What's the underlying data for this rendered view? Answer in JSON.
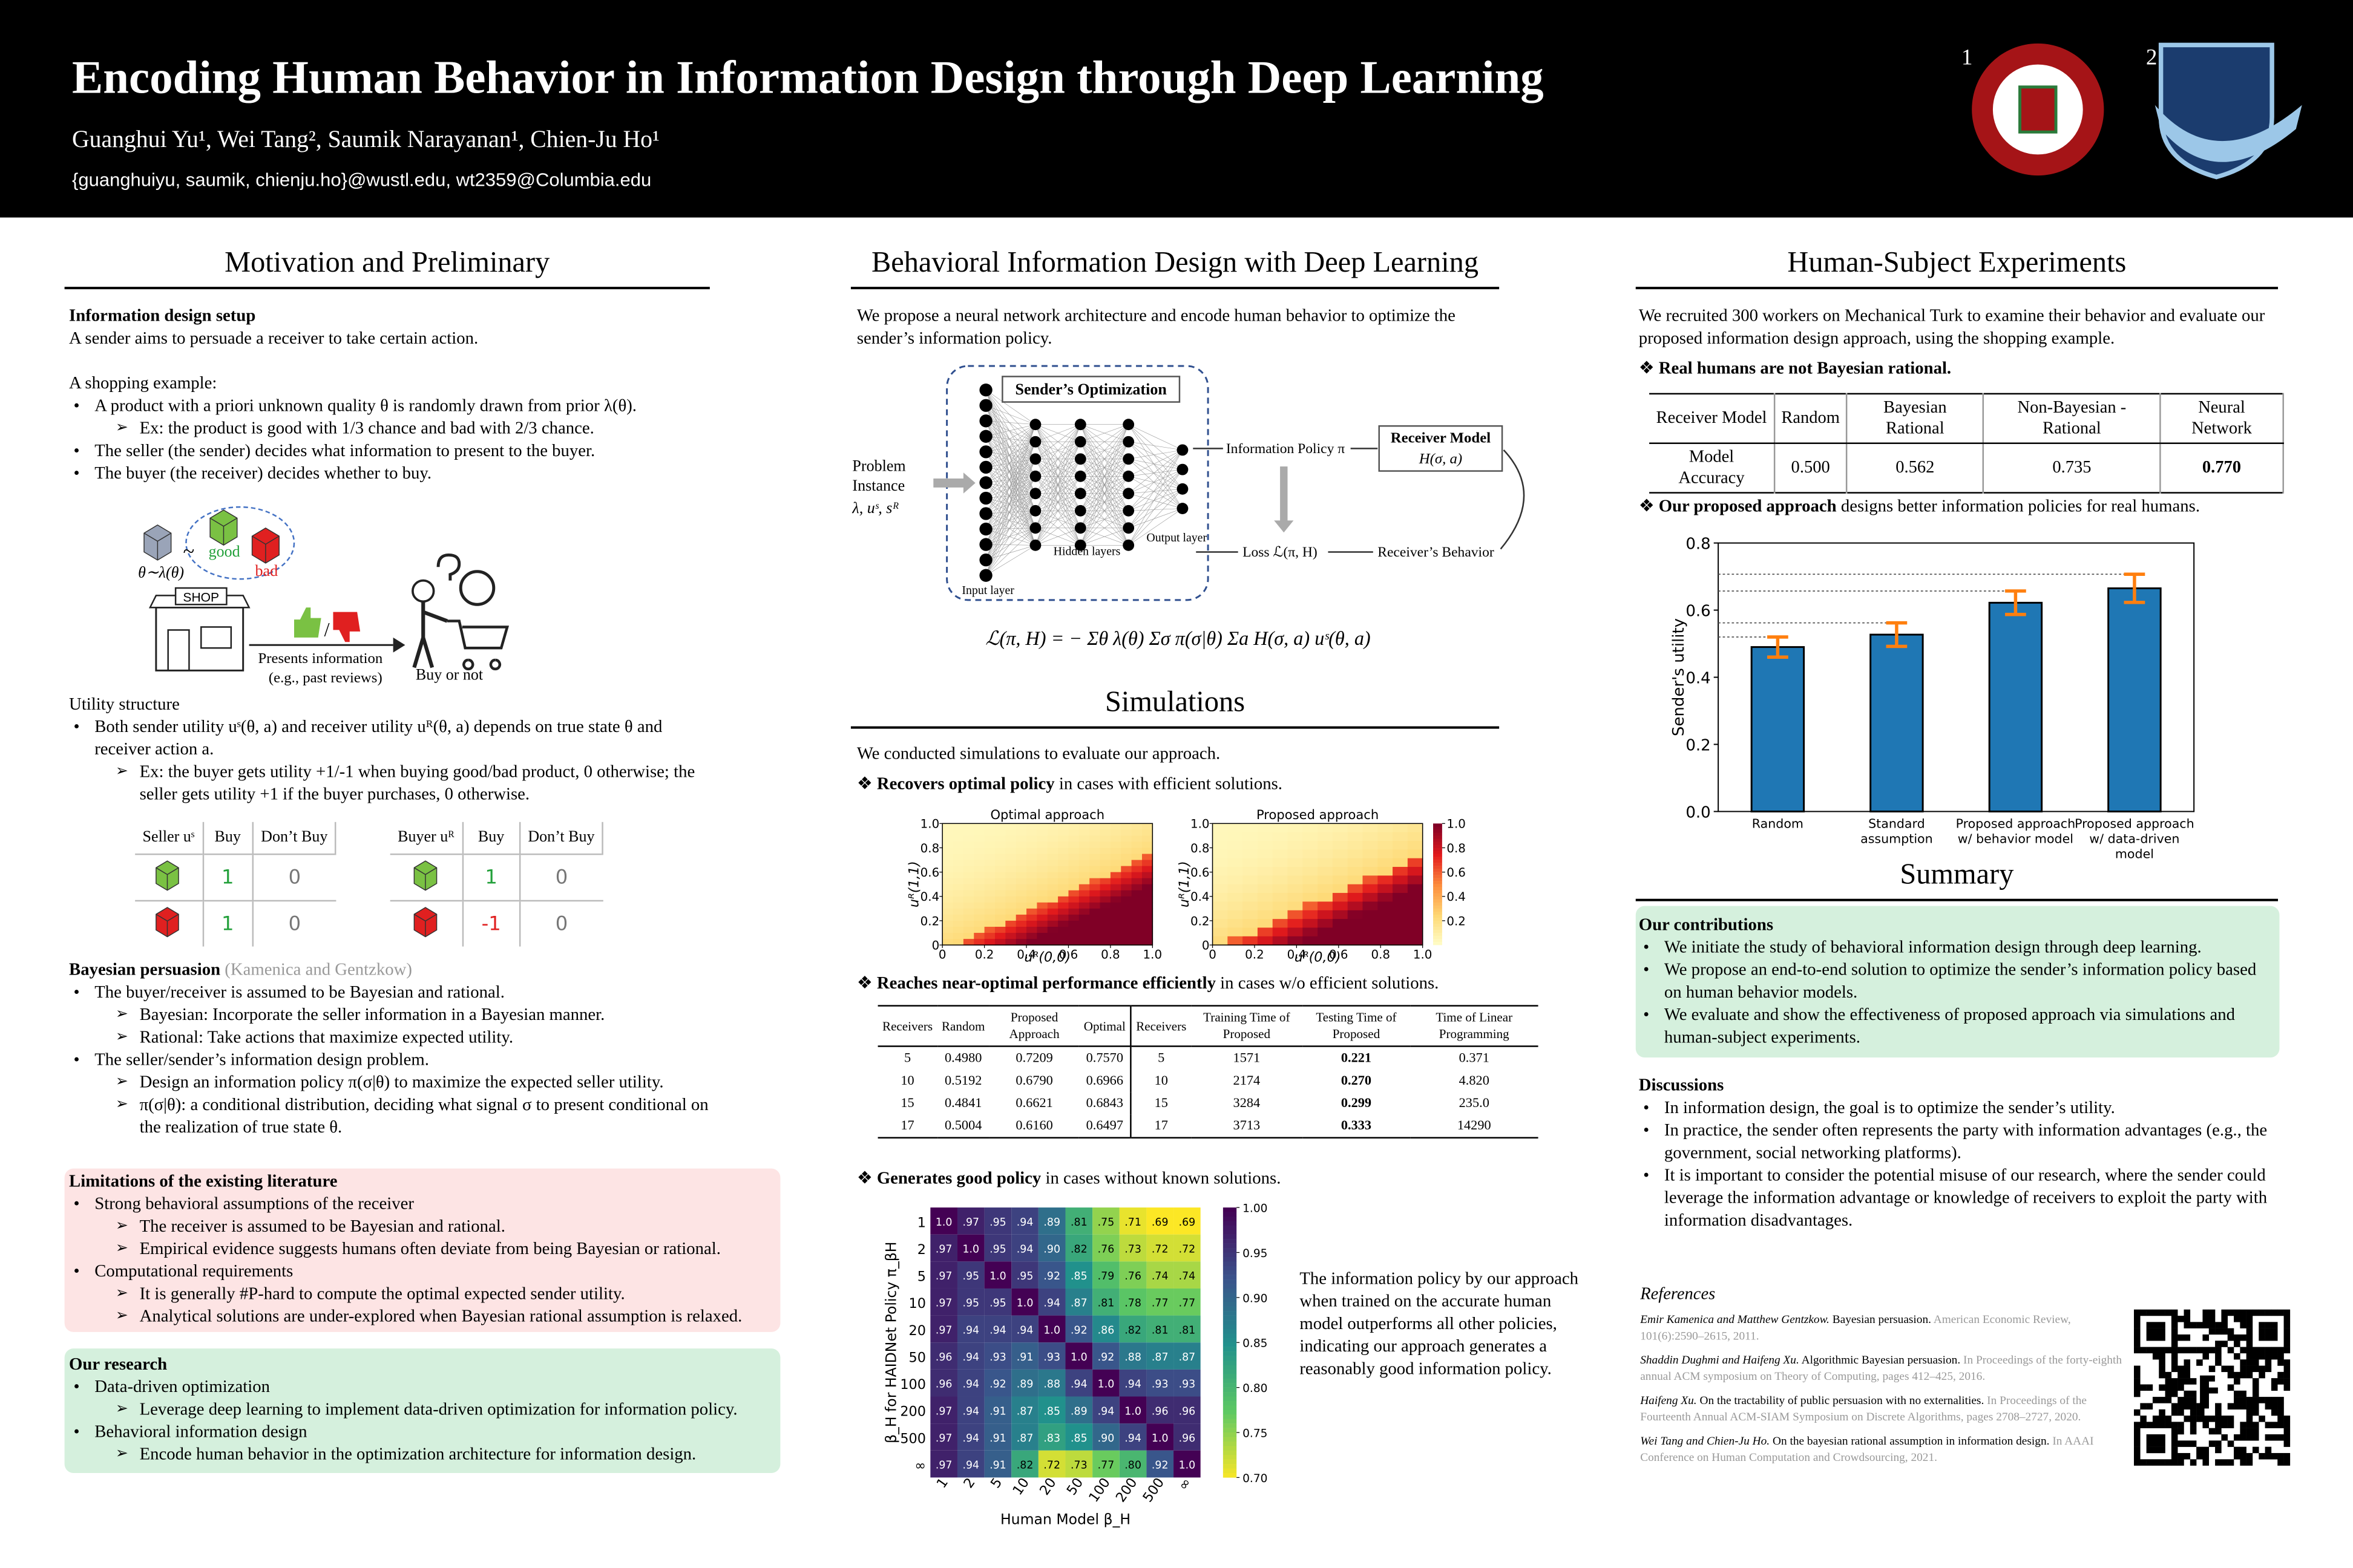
{
  "header": {
    "title": "Encoding Human Behavior in Information Design through Deep Learning",
    "authors": "Guanghui Yu¹, Wei Tang², Saumik Narayanan¹, Chien-Ju Ho¹",
    "emails": "{guanghuiyu, saumik, chienju.ho}@wustl.edu, wt2359@Columbia.edu",
    "logo_marks": [
      "1",
      "2"
    ]
  },
  "motivation": {
    "heading": "Motivation and Preliminary",
    "setup_title": "Information design setup",
    "setup_text": "A sender aims to persuade a receiver to take certain action.",
    "example_title": "A shopping example:",
    "example_items": [
      {
        "text": "A product with a priori unknown quality θ is randomly drawn from prior λ(θ).",
        "sub": [
          "Ex: the product is good with 1/3 chance and bad with 2/3 chance."
        ]
      },
      {
        "text": "The seller (the sender) decides what information to present to the buyer."
      },
      {
        "text": "The buyer (the receiver) decides whether to buy."
      }
    ],
    "illustration": {
      "tilde": "~",
      "prior": "θ∼λ(θ)",
      "good": "good",
      "bad": "bad",
      "shop": "SHOP",
      "slash": "/",
      "presents": "Presents information",
      "presents_note": "(e.g., past reviews)",
      "buy": "Buy or not"
    },
    "utility_title": "Utility structure",
    "utility_items": [
      {
        "text": "Both sender utility uˢ(θ, a) and receiver utility uᴿ(θ, a) depends on true state θ and receiver action a.",
        "sub": [
          "Ex: the buyer gets utility +1/-1 when buying good/bad product, 0 otherwise; the seller gets utility +1 if the buyer purchases, 0 otherwise."
        ]
      }
    ],
    "seller_table": {
      "header": [
        "Seller uˢ",
        "Buy",
        "Don’t Buy"
      ],
      "rows": [
        [
          "1",
          "0"
        ],
        [
          "1",
          "0"
        ]
      ]
    },
    "buyer_table": {
      "header": [
        "Buyer uᴿ",
        "Buy",
        "Don’t Buy"
      ],
      "rows": [
        [
          "1",
          "0"
        ],
        [
          "-1",
          "0"
        ]
      ]
    },
    "bp_title": "Bayesian persuasion",
    "bp_cite": "(Kamenica and Gentzkow)",
    "bp_items": [
      {
        "text": "The buyer/receiver is assumed to be Bayesian and rational.",
        "sub": [
          "Bayesian: Incorporate the seller information in a Bayesian manner.",
          "Rational: Take actions that maximize expected utility."
        ]
      },
      {
        "text": "The seller/sender’s information design problem.",
        "sub": [
          "Design an information policy π(σ|θ) to maximize the expected seller utility.",
          "π(σ|θ): a conditional distribution, deciding what signal σ to present conditional on the realization of true state θ."
        ]
      }
    ]
  },
  "limitations": {
    "title": "Limitations of the existing literature",
    "items": [
      {
        "text": "Strong behavioral assumptions of the receiver",
        "sub": [
          "The receiver is assumed to be Bayesian and rational.",
          "Empirical evidence suggests humans often deviate from being Bayesian or rational."
        ]
      },
      {
        "text": "Computational requirements",
        "sub": [
          "It is generally #P-hard to compute the optimal expected sender utility.",
          "Analytical solutions are under-explored when Bayesian rational assumption is relaxed."
        ]
      }
    ]
  },
  "research": {
    "title": "Our research",
    "items": [
      {
        "text": "Data-driven optimization",
        "sub": [
          "Leverage deep learning to implement data-driven optimization for information policy."
        ]
      },
      {
        "text": "Behavioral information design",
        "sub": [
          "Encode human behavior in the optimization architecture for information design."
        ]
      }
    ]
  },
  "method": {
    "heading": "Behavioral Information Design with Deep Learning",
    "text": "We propose a neural network architecture and encode human behavior to optimize the sender’s information policy.",
    "diagram": {
      "problem": "Problem Instance",
      "params": "λ, uˢ, sᴿ",
      "optimization": "Sender’s Optimization",
      "input": "Input layer",
      "hidden": "Hidden layers",
      "output": "Output layer",
      "policy": "Information Policy π",
      "receiver_model": "Receiver Model",
      "receiver_fn": "H(σ, a)",
      "loss": "Loss ℒ(π, H)",
      "behavior": "Receiver’s Behavior"
    },
    "formula": "ℒ(π, H) = − Σθ λ(θ) Σσ π(σ|θ) Σa H(σ, a) uˢ(θ, a)"
  },
  "simulations": {
    "heading": "Simulations",
    "text": "We conducted simulations to evaluate our approach.",
    "point1": {
      "lead": "Recovers optimal policy",
      "rest": "in cases with efficient solutions."
    },
    "heatmaps": {
      "titles": [
        "Optimal approach",
        "Proposed approach"
      ],
      "xlabel": "uᴿ(0,0)",
      "ylabel": "uᴿ(1,1)",
      "ticks": [
        0,
        0.2,
        0.4,
        0.6,
        0.8,
        {
          "value": 1,
          "label": "1.0"
        }
      ],
      "cbar_ticks": [
        0.2,
        0.4,
        0.6,
        0.8,
        {
          "value": 1,
          "label": "1.0"
        }
      ]
    },
    "point2": {
      "lead": "Reaches near-optimal performance efficiently",
      "rest": "in cases w/o efficient solutions."
    },
    "table": {
      "header": [
        "Receivers",
        "Random",
        "Proposed Approach",
        "Optimal",
        "Receivers",
        "Training Time of Proposed",
        "Testing Time of Proposed",
        "Time of Linear Programming"
      ],
      "rows": [
        [
          "5",
          "0.4980",
          "0.7209",
          "0.7570",
          "5",
          "1571",
          "0.221",
          "0.371"
        ],
        [
          "10",
          "0.5192",
          "0.6790",
          "0.6966",
          "10",
          "2174",
          "0.270",
          "4.820"
        ],
        [
          "15",
          "0.4841",
          "0.6621",
          "0.6843",
          "15",
          "3284",
          "0.299",
          "235.0"
        ],
        [
          "17",
          "0.5004",
          "0.6160",
          "0.6497",
          "17",
          "3713",
          "0.333",
          "14290"
        ]
      ]
    },
    "point3": {
      "lead": "Generates good policy",
      "rest": "in cases without known solutions."
    },
    "matrix": {
      "ylabel": "β_H for HAIDNet Policy π_βH",
      "xlabel": "Human Model β_H",
      "labels": [
        "1",
        "2",
        "5",
        "10",
        "20",
        "50",
        "100",
        "200",
        "500",
        "∞"
      ],
      "cells": [
        [
          "1.0",
          ".97",
          ".95",
          ".94",
          ".89",
          ".81",
          ".75",
          ".71",
          ".69",
          ".69"
        ],
        [
          ".97",
          "1.0",
          ".95",
          ".94",
          ".90",
          ".82",
          ".76",
          ".73",
          ".72",
          ".72"
        ],
        [
          ".97",
          ".95",
          "1.0",
          ".95",
          ".92",
          ".85",
          ".79",
          ".76",
          ".74",
          ".74"
        ],
        [
          ".97",
          ".95",
          ".95",
          "1.0",
          ".94",
          ".87",
          ".81",
          ".78",
          ".77",
          ".77"
        ],
        [
          ".97",
          ".94",
          ".94",
          ".94",
          "1.0",
          ".92",
          ".86",
          ".82",
          ".81",
          ".81"
        ],
        [
          ".96",
          ".94",
          ".93",
          ".91",
          ".93",
          "1.0",
          ".92",
          ".88",
          ".87",
          ".87"
        ],
        [
          ".96",
          ".94",
          ".92",
          ".89",
          ".88",
          ".94",
          "1.0",
          ".94",
          ".93",
          ".93"
        ],
        [
          ".97",
          ".94",
          ".91",
          ".87",
          ".85",
          ".89",
          ".94",
          "1.0",
          ".96",
          ".96"
        ],
        [
          ".97",
          ".94",
          ".91",
          ".87",
          ".83",
          ".85",
          ".90",
          ".94",
          "1.0",
          ".96"
        ],
        [
          ".97",
          ".94",
          ".91",
          ".82",
          ".72",
          ".73",
          ".77",
          ".80",
          ".92",
          "1.0"
        ]
      ],
      "cbar_ticks": [
        {
          "value": 0.7,
          "label": "0.70"
        },
        0.75,
        {
          "value": 0.8,
          "label": "0.80"
        },
        0.85,
        {
          "value": 0.9,
          "label": "0.90"
        },
        0.95,
        {
          "value": 1,
          "label": "1.00"
        }
      ]
    },
    "note": "The information policy by our approach when trained on the accurate human model outperforms all other policies, indicating our approach generates a reasonably good information policy."
  },
  "experiments": {
    "heading": "Human-Subject Experiments",
    "text": "We recruited 300 workers on Mechanical Turk to examine their behavior and evaluate our proposed information design approach, using the shopping example.",
    "point1": "Real humans are not Bayesian rational.",
    "table": {
      "header": [
        "Receiver Model",
        "Random",
        "Bayesian Rational",
        "Non-Bayesian -Rational",
        "Neural Network"
      ],
      "rows": [
        [
          "Model Accuracy",
          "0.500",
          "0.562",
          "0.735",
          "0.770"
        ]
      ]
    },
    "point2": {
      "lead": "Our proposed approach",
      "rest": "designs better information policies for real humans."
    },
    "chart": {
      "type": "bar",
      "ylabel": "Sender's utility",
      "ylim": [
        0,
        0.8
      ],
      "yticks": [
        {
          "value": 0,
          "label": "0.0"
        },
        0.2,
        0.4,
        0.6,
        0.8
      ],
      "categories": [
        "Random",
        "Standard assumption",
        "Proposed approach w/ behavior model",
        "Proposed approach w/ data-driven model"
      ],
      "values": [
        0.49,
        0.527,
        0.622,
        0.665
      ],
      "errors": [
        0.03,
        0.035,
        0.035,
        0.042
      ],
      "color": "#1f77b4",
      "error_color": "#ff7f0e"
    }
  },
  "summary": {
    "heading": "Summary",
    "contrib_title": "Our contributions",
    "contributions": [
      "We initiate the study of behavioral information design through deep learning.",
      "We propose an end-to-end solution to optimize the sender’s information policy based on human behavior models.",
      "We evaluate and show the effectiveness of proposed approach via simulations and human-subject experiments."
    ],
    "disc_title": "Discussions",
    "discussions": [
      "In information design, the goal is to optimize the sender’s utility.",
      "In practice, the sender often represents the party with information advantages (e.g., the government, social networking platforms).",
      "It is important to consider the potential misuse of our research, where the sender could leverage the information advantage or knowledge of receivers to exploit the party with information disadvantages."
    ]
  },
  "references": {
    "title": "References",
    "items": [
      {
        "authors": "Emir Kamenica and Matthew Gentzkow.",
        "title": "Bayesian persuasion.",
        "venue": "American Economic Review, 101(6):2590–2615, 2011."
      },
      {
        "authors": "Shaddin Dughmi and Haifeng Xu.",
        "title": "Algorithmic Bayesian persuasion.",
        "venue": "In Proceedings of the forty-eighth annual ACM symposium on Theory of Computing, pages 412–425, 2016."
      },
      {
        "authors": "Haifeng Xu.",
        "title": "On the tractability of public persuasion with no externalities.",
        "venue": "In Proceedings of the Fourteenth Annual ACM-SIAM Symposium on Discrete Algorithms, pages 2708–2727, 2020."
      },
      {
        "authors": "Wei Tang and Chien-Ju Ho.",
        "title": "On the bayesian rational assumption in information design.",
        "venue": "In AAAI Conference on Human Computation and Crowdsourcing, 2021."
      }
    ]
  }
}
